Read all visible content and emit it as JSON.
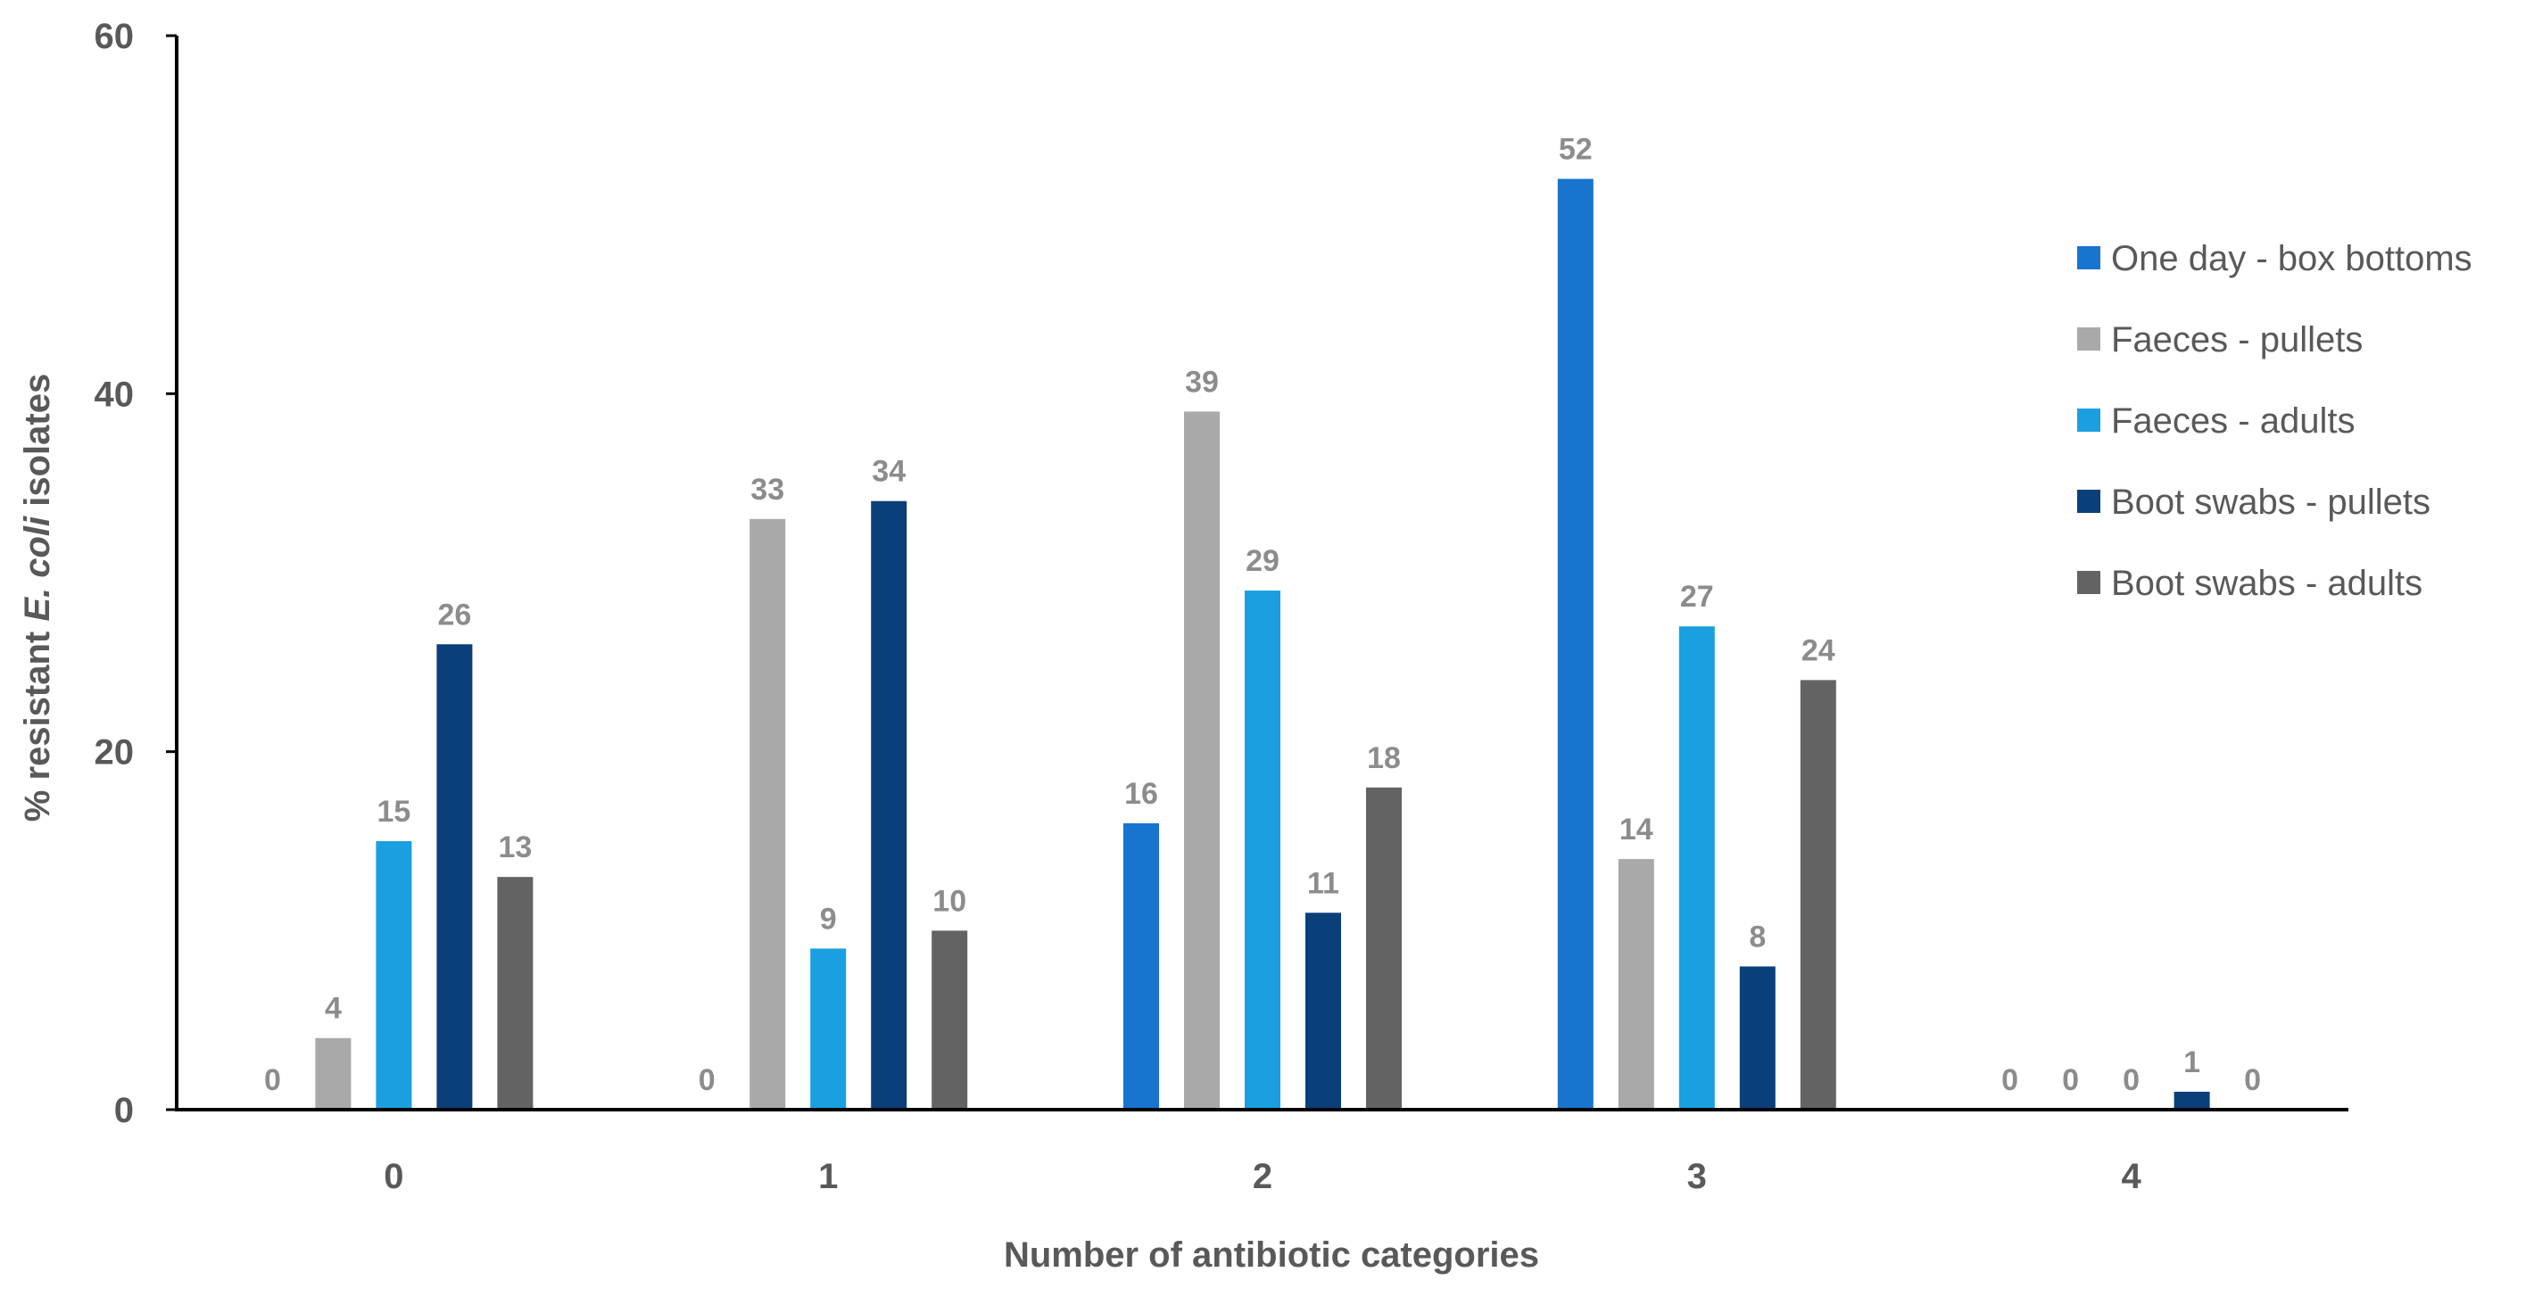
{
  "chart_data": {
    "type": "bar",
    "title": "",
    "xlabel": "Number of antibiotic categories",
    "ylabel": {
      "prefix": "% resistant ",
      "italic": "E. coli",
      "suffix": " isolates"
    },
    "ylim": [
      0,
      60
    ],
    "yticks": [
      0,
      20,
      40,
      60
    ],
    "grid": false,
    "legend_position": "right",
    "categories": [
      "0",
      "1",
      "2",
      "3",
      "4"
    ],
    "series": [
      {
        "name": "One day - box bottoms",
        "color": "#1874cd",
        "values": [
          0,
          0,
          16,
          52,
          0
        ]
      },
      {
        "name": "Faeces -  pullets",
        "color": "#a9a9a9",
        "values": [
          4,
          33,
          39,
          14,
          0
        ]
      },
      {
        "name": "Faeces - adults",
        "color": "#1aa0e0",
        "values": [
          15,
          9,
          29,
          27,
          0
        ]
      },
      {
        "name": "Boot swabs - pullets",
        "color": "#0b3f7a",
        "values": [
          26,
          34,
          11,
          8,
          1
        ]
      },
      {
        "name": "Boot swabs - adults",
        "color": "#636363",
        "values": [
          13,
          10,
          18,
          24,
          0
        ]
      }
    ]
  }
}
